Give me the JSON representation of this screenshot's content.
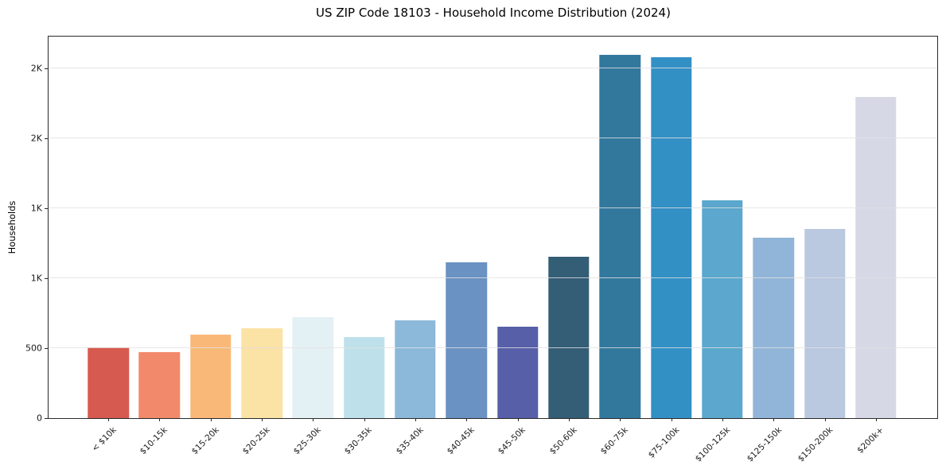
{
  "chart_data": {
    "type": "bar",
    "title": "US ZIP Code 18103 - Household Income Distribution (2024)",
    "xlabel": "",
    "ylabel": "Households",
    "categories": [
      "< $10k",
      "$10-15k",
      "$15-20k",
      "$20-25k",
      "$25-30k",
      "$30-35k",
      "$35-40k",
      "$40-45k",
      "$45-50k",
      "$50-60k",
      "$60-75k",
      "$75-100k",
      "$100-125k",
      "$125-150k",
      "$150-200k",
      "$200k+"
    ],
    "values": [
      505,
      470,
      600,
      645,
      725,
      580,
      700,
      1115,
      655,
      1155,
      2600,
      2585,
      1560,
      1290,
      1355,
      2300
    ],
    "bar_colors": [
      "#d65a50",
      "#f2896b",
      "#f9b877",
      "#fbe2a5",
      "#e4f1f4",
      "#bee0ea",
      "#8cb8d9",
      "#6a92c2",
      "#575fa8",
      "#345d76",
      "#32789d",
      "#3390c5",
      "#5ba7cd",
      "#91b5d8",
      "#bac8e0",
      "#d6d8e6"
    ],
    "ylim": [
      0,
      2730
    ],
    "yticks": [
      {
        "value": 0,
        "label": "0"
      },
      {
        "value": 500,
        "label": "500"
      },
      {
        "value": 1000,
        "label": "1K"
      },
      {
        "value": 1500,
        "label": "1K"
      },
      {
        "value": 2000,
        "label": "2K"
      },
      {
        "value": 2500,
        "label": "2K"
      }
    ],
    "grid": "horizontal gridlines at y ticks, drawn above bars",
    "legend": "none"
  },
  "colors": {
    "background": "#ffffff",
    "axis_spine": "#2a2a2a",
    "gridline": "#e1e1e1",
    "tick_label": "#1a1a1a"
  }
}
